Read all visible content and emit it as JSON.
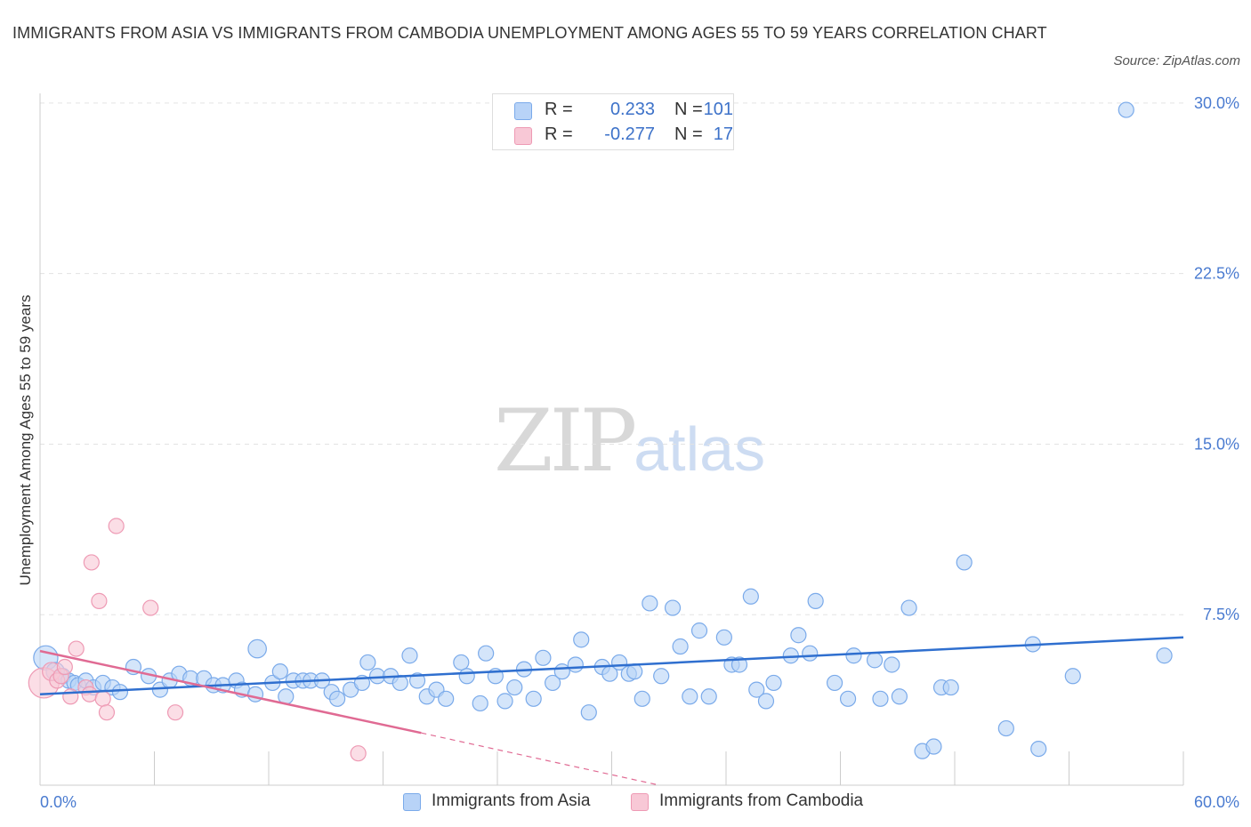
{
  "title": "IMMIGRANTS FROM ASIA VS IMMIGRANTS FROM CAMBODIA UNEMPLOYMENT AMONG AGES 55 TO 59 YEARS CORRELATION CHART",
  "source": "Source: ZipAtlas.com",
  "watermark": {
    "zip": "ZIP",
    "atlas": "atlas"
  },
  "legend_top": {
    "rows": [
      {
        "r_label": "R =",
        "r_value": "0.233",
        "n_label": "N =",
        "n_value": "101"
      },
      {
        "r_label": "R =",
        "r_value": "-0.277",
        "n_label": "N =",
        "n_value": "17"
      }
    ]
  },
  "legend_bottom": [
    "Immigrants from Asia",
    "Immigrants from Cambodia"
  ],
  "colors": {
    "asia_fill": "#b8d3f7",
    "asia_stroke": "#7aaaea",
    "asia_line": "#2f6fcf",
    "cambodia_fill": "#f8c8d6",
    "cambodia_stroke": "#ee9ab4",
    "cambodia_line": "#e06a93",
    "tick_text": "#4a7bd0",
    "grid": "#e3e3e3"
  },
  "chart_data": {
    "type": "scatter",
    "title": "IMMIGRANTS FROM ASIA VS IMMIGRANTS FROM CAMBODIA UNEMPLOYMENT AMONG AGES 55 TO 59 YEARS CORRELATION CHART",
    "xlabel": "",
    "ylabel": "Unemployment Among Ages 55 to 59 years",
    "xlim": [
      0,
      60
    ],
    "ylim": [
      0,
      30.8
    ],
    "x_tick_labels": [
      "0.0%",
      "60.0%"
    ],
    "y_ticks": [
      7.5,
      15.0,
      22.5,
      30.0
    ],
    "y_tick_labels": [
      "7.5%",
      "15.0%",
      "22.5%",
      "30.0%"
    ],
    "grid": true,
    "legend": "top-center",
    "series": [
      {
        "name": "Immigrants from Asia",
        "R": 0.233,
        "N": 101,
        "trend": {
          "x": [
            0,
            60
          ],
          "y": [
            4.0,
            6.5
          ]
        },
        "points": [
          [
            0.3,
            5.6,
            1.6
          ],
          [
            0.8,
            5.0,
            1.2
          ],
          [
            1.2,
            4.8,
            1.0
          ],
          [
            1.5,
            4.6,
            1.0
          ],
          [
            1.8,
            4.5,
            1.0
          ],
          [
            2.0,
            4.4,
            1.0
          ],
          [
            2.4,
            4.6,
            1.0
          ],
          [
            2.8,
            4.3,
            1.0
          ],
          [
            3.3,
            4.5,
            1.0
          ],
          [
            3.8,
            4.3,
            1.0
          ],
          [
            4.2,
            4.1,
            1.0
          ],
          [
            4.9,
            5.2,
            1.0
          ],
          [
            5.7,
            4.8,
            1.0
          ],
          [
            6.3,
            4.2,
            1.0
          ],
          [
            6.8,
            4.6,
            1.0
          ],
          [
            7.3,
            4.9,
            1.0
          ],
          [
            7.9,
            4.7,
            1.0
          ],
          [
            8.6,
            4.7,
            1.0
          ],
          [
            9.1,
            4.4,
            1.0
          ],
          [
            9.6,
            4.4,
            1.0
          ],
          [
            10.3,
            4.6,
            1.0
          ],
          [
            10.6,
            4.2,
            1.0
          ],
          [
            11.3,
            4.0,
            1.0
          ],
          [
            11.4,
            6.0,
            1.2
          ],
          [
            12.2,
            4.5,
            1.0
          ],
          [
            12.6,
            5.0,
            1.0
          ],
          [
            12.9,
            3.9,
            1.0
          ],
          [
            13.3,
            4.6,
            1.0
          ],
          [
            13.8,
            4.6,
            1.0
          ],
          [
            14.2,
            4.6,
            1.0
          ],
          [
            14.8,
            4.6,
            1.0
          ],
          [
            15.3,
            4.1,
            1.0
          ],
          [
            15.6,
            3.8,
            1.0
          ],
          [
            16.3,
            4.2,
            1.0
          ],
          [
            16.9,
            4.5,
            1.0
          ],
          [
            17.2,
            5.4,
            1.0
          ],
          [
            17.7,
            4.8,
            1.0
          ],
          [
            18.4,
            4.8,
            1.0
          ],
          [
            18.9,
            4.5,
            1.0
          ],
          [
            19.4,
            5.7,
            1.0
          ],
          [
            19.8,
            4.6,
            1.0
          ],
          [
            20.3,
            3.9,
            1.0
          ],
          [
            20.8,
            4.2,
            1.0
          ],
          [
            21.3,
            3.8,
            1.0
          ],
          [
            22.1,
            5.4,
            1.0
          ],
          [
            22.4,
            4.8,
            1.0
          ],
          [
            23.1,
            3.6,
            1.0
          ],
          [
            23.4,
            5.8,
            1.0
          ],
          [
            23.9,
            4.8,
            1.0
          ],
          [
            24.4,
            3.7,
            1.0
          ],
          [
            24.9,
            4.3,
            1.0
          ],
          [
            25.4,
            5.1,
            1.0
          ],
          [
            25.9,
            3.8,
            1.0
          ],
          [
            26.4,
            5.6,
            1.0
          ],
          [
            26.9,
            4.5,
            1.0
          ],
          [
            27.4,
            5.0,
            1.0
          ],
          [
            28.1,
            5.3,
            1.0
          ],
          [
            28.4,
            6.4,
            1.0
          ],
          [
            28.8,
            3.2,
            1.0
          ],
          [
            29.5,
            5.2,
            1.0
          ],
          [
            29.9,
            4.9,
            1.0
          ],
          [
            30.4,
            5.4,
            1.0
          ],
          [
            30.9,
            4.9,
            1.0
          ],
          [
            31.2,
            5.0,
            1.0
          ],
          [
            31.6,
            3.8,
            1.0
          ],
          [
            32.0,
            8.0,
            1.0
          ],
          [
            32.6,
            4.8,
            1.0
          ],
          [
            33.2,
            7.8,
            1.0
          ],
          [
            33.6,
            6.1,
            1.0
          ],
          [
            34.1,
            3.9,
            1.0
          ],
          [
            34.6,
            6.8,
            1.0
          ],
          [
            35.1,
            3.9,
            1.0
          ],
          [
            35.9,
            6.5,
            1.0
          ],
          [
            36.3,
            5.3,
            1.0
          ],
          [
            36.7,
            5.3,
            1.0
          ],
          [
            37.3,
            8.3,
            1.0
          ],
          [
            37.6,
            4.2,
            1.0
          ],
          [
            38.1,
            3.7,
            1.0
          ],
          [
            38.5,
            4.5,
            1.0
          ],
          [
            39.4,
            5.7,
            1.0
          ],
          [
            39.8,
            6.6,
            1.0
          ],
          [
            40.4,
            5.8,
            1.0
          ],
          [
            40.7,
            8.1,
            1.0
          ],
          [
            41.7,
            4.5,
            1.0
          ],
          [
            42.4,
            3.8,
            1.0
          ],
          [
            42.7,
            5.7,
            1.0
          ],
          [
            43.8,
            5.5,
            1.0
          ],
          [
            44.1,
            3.8,
            1.0
          ],
          [
            44.7,
            5.3,
            1.0
          ],
          [
            45.1,
            3.9,
            1.0
          ],
          [
            45.6,
            7.8,
            1.0
          ],
          [
            46.3,
            1.5,
            1.0
          ],
          [
            46.9,
            1.7,
            1.0
          ],
          [
            47.3,
            4.3,
            1.0
          ],
          [
            47.8,
            4.3,
            1.0
          ],
          [
            48.5,
            9.8,
            1.0
          ],
          [
            50.7,
            2.5,
            1.0
          ],
          [
            52.1,
            6.2,
            1.0
          ],
          [
            52.4,
            1.6,
            1.0
          ],
          [
            54.2,
            4.8,
            1.0
          ],
          [
            57.0,
            29.7,
            1.0
          ],
          [
            59.0,
            5.7,
            1.0
          ]
        ]
      },
      {
        "name": "Immigrants from Cambodia",
        "R": -0.277,
        "N": 17,
        "trend": {
          "x": [
            0,
            20
          ],
          "y": [
            5.9,
            2.3
          ],
          "dashed_to": {
            "x": [
              20,
              32.5
            ],
            "y": [
              2.3,
              0.0
            ]
          }
        },
        "points": [
          [
            0.2,
            4.5,
            2.0
          ],
          [
            0.6,
            5.0,
            1.2
          ],
          [
            0.9,
            4.6,
            1.0
          ],
          [
            1.1,
            4.8,
            1.0
          ],
          [
            1.3,
            5.2,
            1.0
          ],
          [
            1.6,
            3.9,
            1.0
          ],
          [
            1.9,
            6.0,
            1.0
          ],
          [
            2.4,
            4.3,
            1.0
          ],
          [
            2.6,
            4.0,
            1.0
          ],
          [
            2.7,
            9.8,
            1.0
          ],
          [
            3.1,
            8.1,
            1.0
          ],
          [
            3.3,
            3.8,
            1.0
          ],
          [
            3.5,
            3.2,
            1.0
          ],
          [
            4.0,
            11.4,
            1.0
          ],
          [
            5.8,
            7.8,
            1.0
          ],
          [
            7.1,
            3.2,
            1.0
          ],
          [
            16.7,
            1.4,
            1.0
          ]
        ]
      }
    ]
  }
}
